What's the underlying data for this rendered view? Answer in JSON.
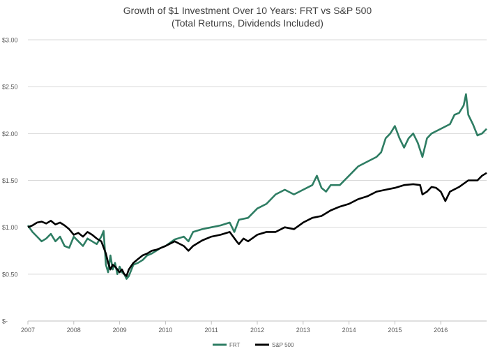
{
  "chart_data": {
    "type": "line",
    "title": "Growth of $1 Investment Over 10 Years: FRT vs S&P 500",
    "subtitle": "(Total Returns, Dividends Included)",
    "xlabel": "",
    "ylabel": "",
    "xlim": [
      2007,
      2017
    ],
    "ylim": [
      0,
      3
    ],
    "grid": "horizontal",
    "legend": "bottom",
    "y_ticks": [
      {
        "value": 0,
        "label": "$-"
      },
      {
        "value": 0.5,
        "label": "$0.50"
      },
      {
        "value": 1.0,
        "label": "$1.00"
      },
      {
        "value": 1.5,
        "label": "$1.50"
      },
      {
        "value": 2.0,
        "label": "$2.00"
      },
      {
        "value": 2.5,
        "label": "$2.50"
      },
      {
        "value": 3.0,
        "label": "$3.00"
      }
    ],
    "x_ticks": [
      {
        "value": 2007,
        "label": "2007"
      },
      {
        "value": 2008,
        "label": "2008"
      },
      {
        "value": 2009,
        "label": "2009"
      },
      {
        "value": 2010,
        "label": "2010"
      },
      {
        "value": 2011,
        "label": "2011"
      },
      {
        "value": 2012,
        "label": "2012"
      },
      {
        "value": 2013,
        "label": "2013"
      },
      {
        "value": 2014,
        "label": "2014"
      },
      {
        "value": 2015,
        "label": "2015"
      },
      {
        "value": 2016,
        "label": "2016"
      }
    ],
    "series": [
      {
        "name": "FRT",
        "color": "#2e7d63",
        "x": [
          2007.0,
          2007.1,
          2007.2,
          2007.3,
          2007.4,
          2007.5,
          2007.6,
          2007.7,
          2007.8,
          2007.9,
          2008.0,
          2008.1,
          2008.2,
          2008.3,
          2008.4,
          2008.5,
          2008.6,
          2008.65,
          2008.7,
          2008.75,
          2008.8,
          2008.85,
          2008.9,
          2008.95,
          2009.0,
          2009.05,
          2009.1,
          2009.15,
          2009.2,
          2009.3,
          2009.4,
          2009.5,
          2009.6,
          2009.7,
          2009.8,
          2009.9,
          2010.0,
          2010.2,
          2010.4,
          2010.5,
          2010.6,
          2010.8,
          2011.0,
          2011.2,
          2011.4,
          2011.5,
          2011.6,
          2011.8,
          2012.0,
          2012.2,
          2012.4,
          2012.6,
          2012.8,
          2013.0,
          2013.2,
          2013.3,
          2013.4,
          2013.5,
          2013.6,
          2013.8,
          2014.0,
          2014.2,
          2014.4,
          2014.6,
          2014.7,
          2014.8,
          2014.9,
          2015.0,
          2015.1,
          2015.2,
          2015.3,
          2015.4,
          2015.5,
          2015.6,
          2015.7,
          2015.8,
          2016.0,
          2016.2,
          2016.3,
          2016.4,
          2016.5,
          2016.55,
          2016.6,
          2016.7,
          2016.8,
          2016.9,
          2017.0
        ],
        "values": [
          1.02,
          0.95,
          0.9,
          0.85,
          0.88,
          0.93,
          0.85,
          0.9,
          0.8,
          0.78,
          0.9,
          0.85,
          0.8,
          0.88,
          0.85,
          0.82,
          0.9,
          0.96,
          0.6,
          0.52,
          0.7,
          0.55,
          0.62,
          0.5,
          0.58,
          0.52,
          0.5,
          0.45,
          0.48,
          0.6,
          0.62,
          0.65,
          0.7,
          0.72,
          0.75,
          0.78,
          0.8,
          0.87,
          0.9,
          0.85,
          0.95,
          0.98,
          1.0,
          1.02,
          1.05,
          0.95,
          1.08,
          1.1,
          1.2,
          1.25,
          1.35,
          1.4,
          1.35,
          1.4,
          1.45,
          1.55,
          1.42,
          1.38,
          1.45,
          1.45,
          1.55,
          1.65,
          1.7,
          1.75,
          1.8,
          1.95,
          2.0,
          2.08,
          1.95,
          1.85,
          1.95,
          2.0,
          1.9,
          1.75,
          1.95,
          2.0,
          2.05,
          2.1,
          2.2,
          2.22,
          2.3,
          2.42,
          2.2,
          2.1,
          1.98,
          2.0,
          2.05
        ]
      },
      {
        "name": "S&P 500",
        "color": "#000000",
        "x": [
          2007.0,
          2007.1,
          2007.2,
          2007.3,
          2007.4,
          2007.5,
          2007.6,
          2007.7,
          2007.8,
          2007.9,
          2008.0,
          2008.1,
          2008.2,
          2008.3,
          2008.4,
          2008.5,
          2008.6,
          2008.7,
          2008.75,
          2008.8,
          2008.85,
          2008.9,
          2008.95,
          2009.0,
          2009.05,
          2009.1,
          2009.15,
          2009.2,
          2009.3,
          2009.4,
          2009.5,
          2009.6,
          2009.7,
          2009.8,
          2009.9,
          2010.0,
          2010.2,
          2010.4,
          2010.5,
          2010.6,
          2010.8,
          2011.0,
          2011.2,
          2011.4,
          2011.55,
          2011.6,
          2011.7,
          2011.8,
          2012.0,
          2012.2,
          2012.4,
          2012.6,
          2012.8,
          2013.0,
          2013.2,
          2013.4,
          2013.6,
          2013.8,
          2014.0,
          2014.2,
          2014.4,
          2014.6,
          2014.8,
          2015.0,
          2015.2,
          2015.4,
          2015.55,
          2015.6,
          2015.7,
          2015.8,
          2015.9,
          2016.0,
          2016.1,
          2016.2,
          2016.4,
          2016.6,
          2016.8,
          2016.9,
          2017.0
        ],
        "values": [
          1.0,
          1.02,
          1.05,
          1.06,
          1.04,
          1.07,
          1.03,
          1.05,
          1.02,
          0.98,
          0.92,
          0.94,
          0.9,
          0.95,
          0.92,
          0.88,
          0.85,
          0.72,
          0.62,
          0.55,
          0.6,
          0.58,
          0.55,
          0.52,
          0.55,
          0.5,
          0.48,
          0.55,
          0.62,
          0.66,
          0.7,
          0.72,
          0.75,
          0.76,
          0.78,
          0.8,
          0.85,
          0.8,
          0.75,
          0.8,
          0.86,
          0.9,
          0.92,
          0.95,
          0.85,
          0.82,
          0.88,
          0.85,
          0.92,
          0.95,
          0.95,
          1.0,
          0.98,
          1.05,
          1.1,
          1.12,
          1.18,
          1.22,
          1.25,
          1.3,
          1.33,
          1.38,
          1.4,
          1.42,
          1.45,
          1.46,
          1.45,
          1.35,
          1.38,
          1.43,
          1.42,
          1.38,
          1.28,
          1.38,
          1.43,
          1.5,
          1.5,
          1.55,
          1.58
        ]
      }
    ]
  }
}
